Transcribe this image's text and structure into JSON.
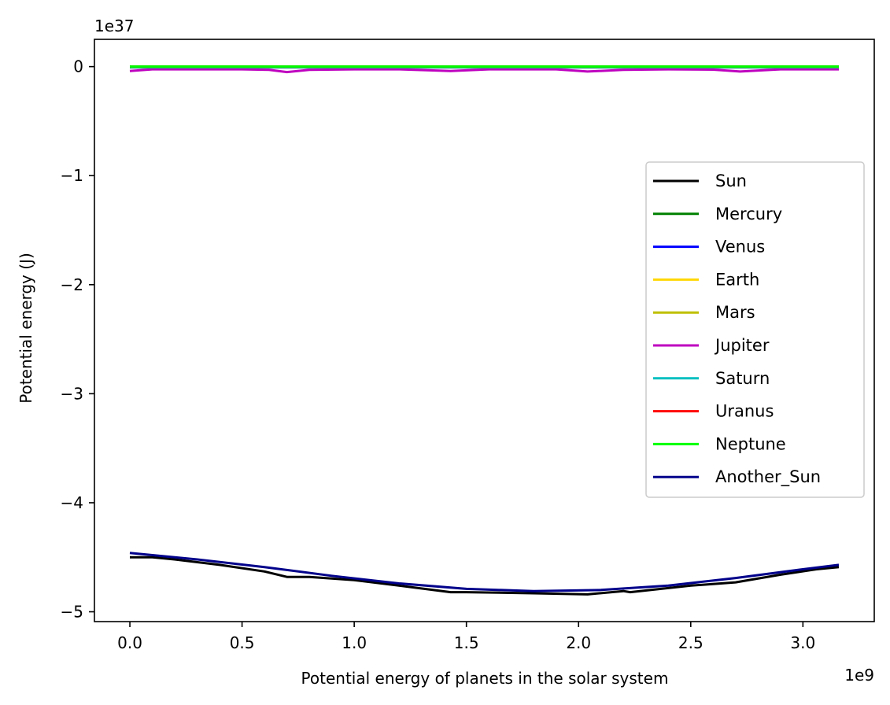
{
  "chart_data": {
    "type": "line",
    "title": "",
    "xlabel": "Potential energy of planets in the solar system",
    "ylabel": "Potential energy (J)",
    "x_offset_label": "1e9",
    "y_offset_label": "1e37",
    "xlim": [
      -0.158,
      3.318
    ],
    "ylim": [
      -5.09,
      0.25
    ],
    "xticks": [
      0.0,
      0.5,
      1.0,
      1.5,
      2.0,
      2.5,
      3.0
    ],
    "xtick_labels": [
      "0.0",
      "0.5",
      "1.0",
      "1.5",
      "2.0",
      "2.5",
      "3.0"
    ],
    "yticks": [
      0,
      -1,
      -2,
      -3,
      -4,
      -5
    ],
    "ytick_labels": [
      "0",
      "−1",
      "−2",
      "−3",
      "−4",
      "−5"
    ],
    "grid": false,
    "legend_position": "center-right",
    "series": [
      {
        "name": "Sun",
        "color": "#000000",
        "x": [
          0.0,
          0.1,
          0.2,
          0.4,
          0.6,
          0.7,
          0.8,
          1.0,
          1.2,
          1.43,
          1.5,
          1.8,
          2.04,
          2.2,
          2.23,
          2.5,
          2.7,
          2.9,
          3.06,
          3.16
        ],
        "y": [
          -4.5,
          -4.5,
          -4.52,
          -4.57,
          -4.63,
          -4.68,
          -4.68,
          -4.71,
          -4.76,
          -4.82,
          -4.82,
          -4.83,
          -4.84,
          -4.81,
          -4.82,
          -4.76,
          -4.73,
          -4.66,
          -4.61,
          -4.59
        ]
      },
      {
        "name": "Mercury",
        "color": "#008000",
        "x": [
          0.0,
          3.16
        ],
        "y": [
          0.0,
          0.0
        ]
      },
      {
        "name": "Venus",
        "color": "#0000ff",
        "x": [
          0.0,
          3.16
        ],
        "y": [
          -0.005,
          -0.005
        ]
      },
      {
        "name": "Earth",
        "color": "#ffd700",
        "x": [
          0.0,
          3.16
        ],
        "y": [
          -0.005,
          -0.005
        ]
      },
      {
        "name": "Mars",
        "color": "#bfbf00",
        "x": [
          0.0,
          3.16
        ],
        "y": [
          -0.001,
          -0.001
        ]
      },
      {
        "name": "Jupiter",
        "color": "#bf00bf",
        "x": [
          0.0,
          0.1,
          0.5,
          0.62,
          0.7,
          0.8,
          1.0,
          1.2,
          1.43,
          1.6,
          1.9,
          2.04,
          2.2,
          2.4,
          2.6,
          2.72,
          2.9,
          3.16
        ],
        "y": [
          -0.04,
          -0.025,
          -0.025,
          -0.03,
          -0.05,
          -0.03,
          -0.025,
          -0.025,
          -0.04,
          -0.025,
          -0.025,
          -0.045,
          -0.03,
          -0.025,
          -0.028,
          -0.045,
          -0.025,
          -0.025
        ]
      },
      {
        "name": "Saturn",
        "color": "#00bfbf",
        "x": [
          0.0,
          3.16
        ],
        "y": [
          -0.008,
          -0.008
        ]
      },
      {
        "name": "Uranus",
        "color": "#ff0000",
        "x": [
          0.0,
          3.16
        ],
        "y": [
          -0.002,
          -0.002
        ]
      },
      {
        "name": "Neptune",
        "color": "#00ff00",
        "x": [
          0.0,
          0.5,
          1.0,
          1.5,
          2.0,
          2.5,
          3.0,
          3.16
        ],
        "y": [
          0.0,
          0.0,
          0.0,
          0.0,
          0.0,
          0.0,
          0.0,
          0.0
        ]
      },
      {
        "name": "Another_Sun",
        "color": "#00008b",
        "x": [
          0.0,
          0.3,
          0.6,
          0.9,
          1.2,
          1.5,
          1.8,
          2.1,
          2.4,
          2.7,
          3.0,
          3.16
        ],
        "y": [
          -4.46,
          -4.52,
          -4.59,
          -4.67,
          -4.74,
          -4.79,
          -4.81,
          -4.8,
          -4.76,
          -4.69,
          -4.61,
          -4.57
        ]
      }
    ]
  }
}
